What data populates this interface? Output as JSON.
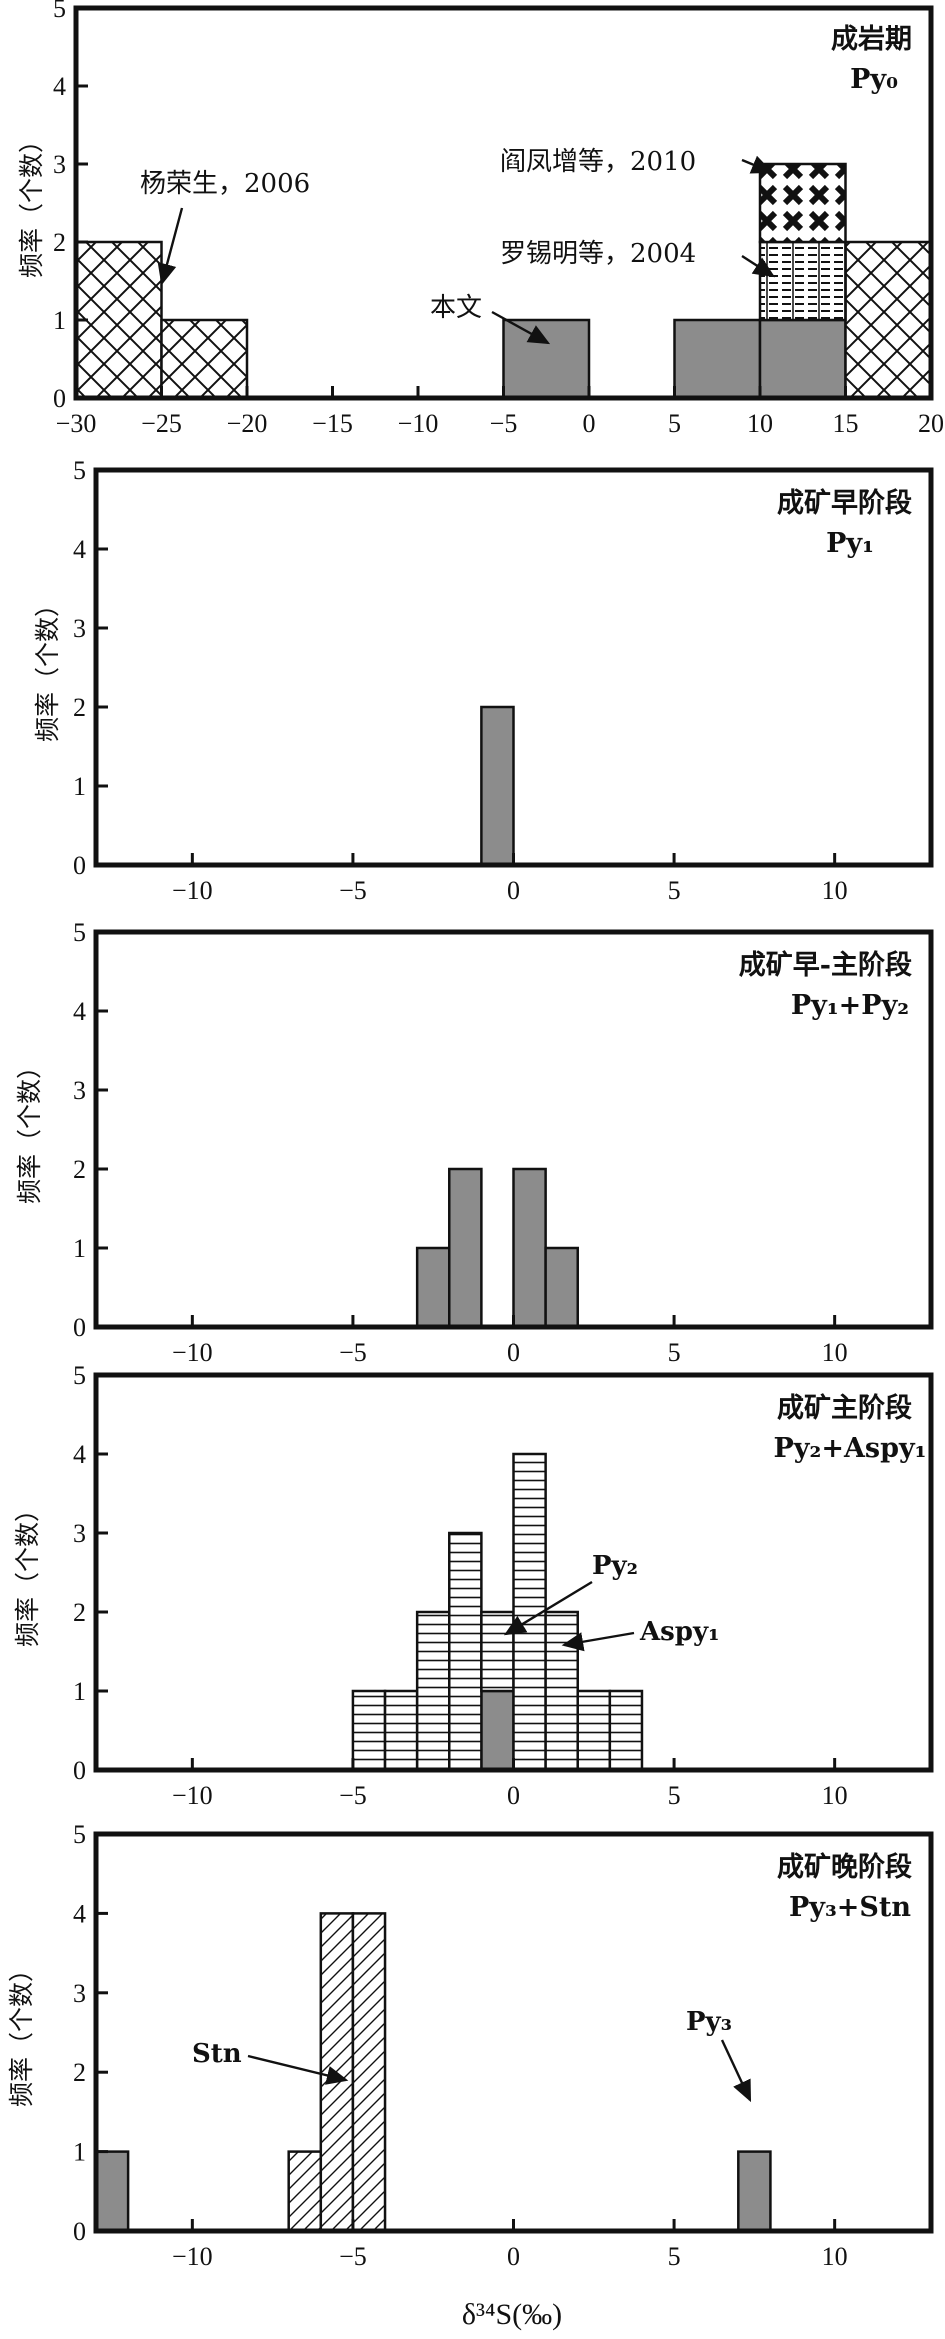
{
  "figure": {
    "xlabel_main": "δ³⁴S(‰)",
    "ylabel": "频率（个数）"
  },
  "colors": {
    "gray_fill": "#8c8c8c",
    "line": "#111111",
    "background": "#ffffff"
  },
  "chart_data": [
    {
      "type": "bar",
      "title": "成岩期",
      "subtitle": "Py₀",
      "xlim": [
        -30,
        20
      ],
      "ylim": [
        0,
        5
      ],
      "xticks": [
        -30,
        -25,
        -20,
        -15,
        -10,
        -5,
        0,
        5,
        10,
        15,
        20
      ],
      "xtick_labels": [
        "−30",
        "−25",
        "−20",
        "−15",
        "−10",
        "−5",
        "0",
        "5",
        "10",
        "15",
        "20"
      ],
      "yticks": [
        0,
        1,
        2,
        3,
        4,
        5
      ],
      "ylabel": "频率（个数）",
      "bin_width": 5,
      "series": [
        {
          "name": "本文",
          "pattern": "gray",
          "bins": [
            {
              "x0": -5,
              "x1": 0,
              "count": 1
            },
            {
              "x0": 5,
              "x1": 10,
              "count": 1
            },
            {
              "x0": 10,
              "x1": 15,
              "count": 1
            }
          ]
        },
        {
          "name": "杨荣生，2006",
          "pattern": "crosshatch",
          "bins": [
            {
              "x0": -30,
              "x1": -25,
              "count": 2
            },
            {
              "x0": -25,
              "x1": -20,
              "count": 1
            },
            {
              "x0": 15,
              "x1": 20,
              "count": 2
            }
          ]
        },
        {
          "name": "罗锡明等，2004",
          "pattern": "dashes",
          "bins": [
            {
              "x0": 10,
              "x1": 15,
              "count": 1
            }
          ]
        },
        {
          "name": "阎凤增等，2010",
          "pattern": "xmarks",
          "bins": [
            {
              "x0": 10,
              "x1": 15,
              "count": 1
            }
          ]
        }
      ],
      "annotations": [
        "杨荣生，2006",
        "阎凤增等，2010",
        "罗锡明等，2004",
        "本文"
      ]
    },
    {
      "type": "bar",
      "title": "成矿早阶段",
      "subtitle": "Py₁",
      "xlim": [
        -13,
        13
      ],
      "ylim": [
        0,
        5
      ],
      "xticks": [
        -10,
        -5,
        0,
        5,
        10
      ],
      "xtick_labels": [
        "−10",
        "−5",
        "0",
        "5",
        "10"
      ],
      "yticks": [
        0,
        1,
        2,
        3,
        4,
        5
      ],
      "ylabel": "频率（个数）",
      "bin_width": 1,
      "series": [
        {
          "name": "Py₁",
          "pattern": "gray",
          "bins": [
            {
              "x0": -1,
              "x1": 0,
              "count": 2
            }
          ]
        }
      ]
    },
    {
      "type": "bar",
      "title": "成矿早-主阶段",
      "subtitle": "Py₁+Py₂",
      "xlim": [
        -13,
        13
      ],
      "ylim": [
        0,
        5
      ],
      "xticks": [
        -10,
        -5,
        0,
        5,
        10
      ],
      "xtick_labels": [
        "−10",
        "−5",
        "0",
        "5",
        "10"
      ],
      "yticks": [
        0,
        1,
        2,
        3,
        4,
        5
      ],
      "ylabel": "频率（个数）",
      "bin_width": 1,
      "series": [
        {
          "name": "Py₁+Py₂",
          "pattern": "gray",
          "bins": [
            {
              "x0": -3,
              "x1": -2,
              "count": 1
            },
            {
              "x0": -2,
              "x1": -1,
              "count": 2
            },
            {
              "x0": 0,
              "x1": 1,
              "count": 2
            },
            {
              "x0": 1,
              "x1": 2,
              "count": 1
            }
          ]
        }
      ]
    },
    {
      "type": "bar",
      "title": "成矿主阶段",
      "subtitle": "Py₂+Aspy₁",
      "xlim": [
        -13,
        13
      ],
      "ylim": [
        0,
        5
      ],
      "xticks": [
        -10,
        -5,
        0,
        5,
        10
      ],
      "xtick_labels": [
        "−10",
        "−5",
        "0",
        "5",
        "10"
      ],
      "yticks": [
        0,
        1,
        2,
        3,
        4,
        5
      ],
      "ylabel": "频率（个数）",
      "bin_width": 1,
      "stacked": true,
      "series": [
        {
          "name": "Py₂",
          "pattern": "gray",
          "bins": [
            {
              "x0": -1,
              "x1": 0,
              "count": 1
            }
          ]
        },
        {
          "name": "Aspy₁",
          "pattern": "hlines",
          "bins": [
            {
              "x0": -5,
              "x1": -4,
              "count": 1
            },
            {
              "x0": -4,
              "x1": -3,
              "count": 1
            },
            {
              "x0": -3,
              "x1": -2,
              "count": 2
            },
            {
              "x0": -2,
              "x1": -1,
              "count": 3
            },
            {
              "x0": -1,
              "x1": 0,
              "count": 1
            },
            {
              "x0": 0,
              "x1": 1,
              "count": 4
            },
            {
              "x0": 1,
              "x1": 2,
              "count": 2
            },
            {
              "x0": 2,
              "x1": 3,
              "count": 1
            },
            {
              "x0": 3,
              "x1": 4,
              "count": 1
            }
          ]
        }
      ],
      "annotations": [
        "Py₂",
        "Aspy₁"
      ]
    },
    {
      "type": "bar",
      "title": "成矿晚阶段",
      "subtitle": "Py₃+Stn",
      "xlim": [
        -13,
        13
      ],
      "ylim": [
        0,
        5
      ],
      "xticks": [
        -10,
        -5,
        0,
        5,
        10
      ],
      "xtick_labels": [
        "−10",
        "−5",
        "0",
        "5",
        "10"
      ],
      "yticks": [
        0,
        1,
        2,
        3,
        4,
        5
      ],
      "ylabel": "频率（个数）",
      "bin_width": 1,
      "series": [
        {
          "name": "Py₃",
          "pattern": "gray",
          "bins": [
            {
              "x0": -13,
              "x1": -12,
              "count": 1
            },
            {
              "x0": 7,
              "x1": 8,
              "count": 1
            }
          ]
        },
        {
          "name": "Stn",
          "pattern": "diagonal",
          "bins": [
            {
              "x0": -7,
              "x1": -6,
              "count": 1
            },
            {
              "x0": -6,
              "x1": -5,
              "count": 4
            },
            {
              "x0": -5,
              "x1": -4,
              "count": 4
            }
          ]
        }
      ],
      "annotations": [
        "Stn",
        "Py₃"
      ]
    }
  ]
}
